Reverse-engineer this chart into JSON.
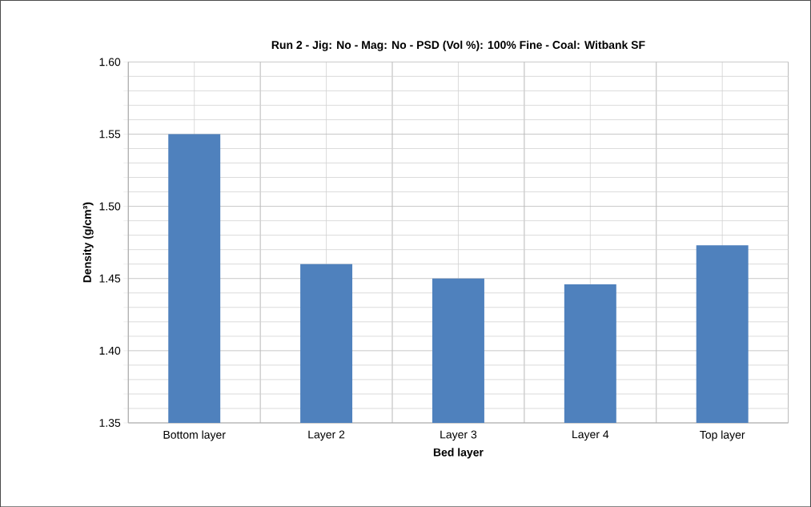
{
  "chart_data": {
    "type": "bar",
    "title": "Run 2 - Jig: No - Mag: No - PSD (Vol %): 100% Fine - Coal: Witbank SF",
    "xlabel": "Bed layer",
    "ylabel": "Density (g/cm³)",
    "categories": [
      "Bottom layer",
      "Layer 2",
      "Layer 3",
      "Layer 4",
      "Top layer"
    ],
    "values": [
      1.55,
      1.46,
      1.45,
      1.446,
      1.473
    ],
    "color": "#4f81bd",
    "ylim": [
      1.35,
      1.6
    ],
    "yticks": [
      {
        "value": 1.35,
        "label": "1.35"
      },
      {
        "value": 1.4,
        "label": "1.40"
      },
      {
        "value": 1.45,
        "label": "1.45"
      },
      {
        "value": 1.5,
        "label": "1.50"
      },
      {
        "value": 1.55,
        "label": "1.55"
      },
      {
        "value": 1.6,
        "label": "1.60"
      }
    ],
    "grid": true
  }
}
